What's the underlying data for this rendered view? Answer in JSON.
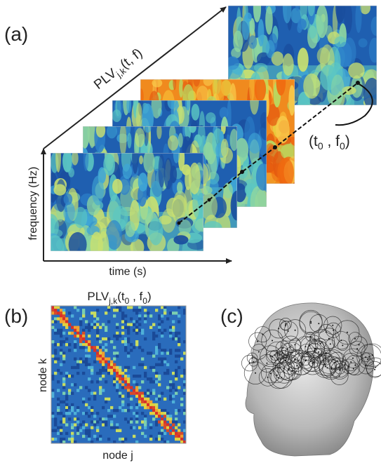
{
  "panels": {
    "a": {
      "label": "(a)",
      "plv_label": {
        "name": "PLV",
        "subscript": "j,k",
        "args": "(t, f)"
      },
      "y_axis_label": "frequency (Hz)",
      "x_axis_label": "time (s)",
      "point_label": {
        "open": "(t",
        "sub1": "0",
        "mid": " , f",
        "sub2": "0",
        "close": ")"
      }
    },
    "b": {
      "label": "(b)",
      "title": {
        "name": "PLV",
        "subscript": "j,k",
        "open": "(t",
        "sub1": "0",
        "mid": " , f",
        "sub2": "0",
        "close": ")"
      },
      "y_axis_label": "node k",
      "x_axis_label": "node j"
    },
    "c": {
      "label": "(c)"
    }
  }
}
